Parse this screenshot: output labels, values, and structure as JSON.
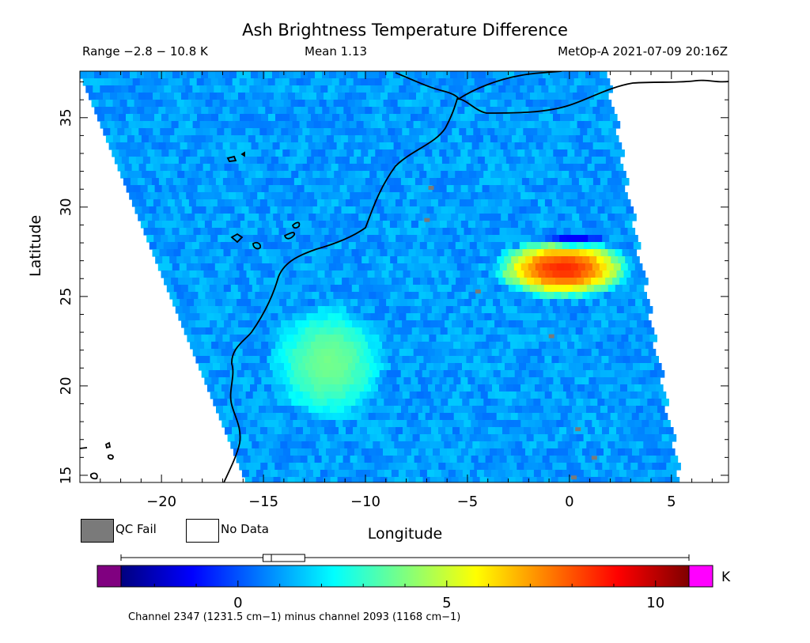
{
  "header": {
    "title": "Ash Brightness Temperature Difference",
    "range": "Range −2.8 − 10.8 K",
    "mean": "Mean 1.13",
    "satellite": "MetOp-A 2021-07-09 20:16Z"
  },
  "legend": {
    "qc_fail": "QC Fail",
    "no_data": "No Data",
    "qc_color": "#7a7a7a",
    "nodata_color": "#ffffff"
  },
  "colorbar": {
    "unit": "K",
    "min": -2.8,
    "max": 10.8,
    "ticks": [
      "0",
      "5",
      "10"
    ],
    "under_color": "#800080",
    "over_color": "#ff00ff",
    "colormap": [
      "#00007f",
      "#0000ff",
      "#007fff",
      "#00ffff",
      "#7fff7f",
      "#ffff00",
      "#ff7f00",
      "#ff0000",
      "#7f0000"
    ],
    "boxplot": {
      "min": -2.8,
      "q1": 0.6,
      "median": 0.8,
      "q3": 1.6,
      "max": 10.8
    }
  },
  "caption": "Channel 2347 (1231.5 cm−1) minus channel 2093 (1168 cm−1)",
  "chart_data": {
    "type": "heatmap",
    "title": "Ash Brightness Temperature Difference",
    "xlabel": "Longitude",
    "ylabel": "Latitude",
    "xlim": [
      -24,
      7.8
    ],
    "ylim": [
      14.6,
      37.6
    ],
    "xticks": [
      -20,
      -15,
      -10,
      -5,
      0,
      5
    ],
    "xtick_labels": [
      "−20",
      "−15",
      "−10",
      "−5",
      "0",
      "5"
    ],
    "yticks": [
      15,
      20,
      25,
      30,
      35
    ],
    "value_range": [
      -2.8,
      10.8
    ],
    "mean": 1.13,
    "units": "K",
    "swath_corners_lonlat": [
      [
        -24,
        37.6
      ],
      [
        1.7,
        37.6
      ],
      [
        5.3,
        14.6
      ],
      [
        -15.8,
        14.6
      ]
    ],
    "features": [
      {
        "name": "high BTD ash plume",
        "lon": [
          -4,
          3
        ],
        "lat": [
          25,
          28.5
        ],
        "value": 9
      },
      {
        "name": "moderate plume",
        "lon": [
          -15,
          -9
        ],
        "lat": [
          18,
          25
        ],
        "value": 4
      },
      {
        "name": "low values",
        "lon": [
          -2,
          2
        ],
        "lat": [
          28,
          28.6
        ],
        "value": -2
      }
    ],
    "qc_fail_points": [
      [
        -6.8,
        31.1
      ],
      [
        -7,
        29.3
      ],
      [
        -4.5,
        25.3
      ],
      [
        -0.9,
        22.8
      ],
      [
        0.4,
        17.6
      ],
      [
        1.2,
        16.0
      ],
      [
        0.2,
        14.9
      ]
    ]
  }
}
